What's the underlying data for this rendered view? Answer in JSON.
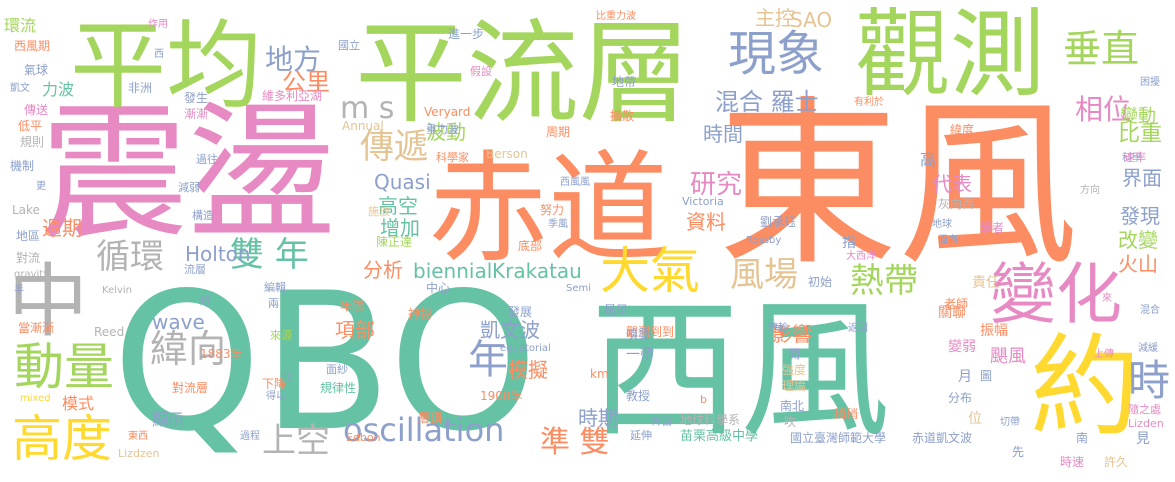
{
  "palette": {
    "green": "#a4d65e",
    "orange": "#fc8d62",
    "teal": "#66c2a5",
    "pink": "#e78ac3",
    "blue": "#8da0cb",
    "yellow": "#ffd92f",
    "tan": "#e5c494",
    "gray": "#b3b3b3"
  },
  "words": {
    "dongfeng": "東風",
    "qbo": "QBO",
    "xifeng": "西風",
    "zhendang": "震盪",
    "chidao": "赤道",
    "pingliuceng": "平流層",
    "pingjun": "平均",
    "guance": "觀測",
    "bianhua": "變化",
    "yue": "約",
    "xianxiang": "現象",
    "dongliang": "動量",
    "gaodu": "高度",
    "oscillation": "oscillation",
    "chuizhi": "垂直",
    "zhong": "中",
    "daqi": "大氣",
    "chuandi": "傳遞",
    "difang": "地方",
    "gongli": "公里",
    "ms": "m s",
    "yanjiu": "研究",
    "fengchang": "風場",
    "redai": "熱帶",
    "shuangnian": "雙 年",
    "xunhuan": "循環",
    "weixiang": "緯向",
    "shangkong": "上空",
    "nian": "年",
    "zhunshuang": "準 雙",
    "xiangwei": "相位",
    "shi": "時",
    "bodong": "波動",
    "hunheluoshi": "混合 羅士",
    "zhukong": "主控",
    "sao": "SAO",
    "shijian": "時間",
    "bianzhong": "比重",
    "biandong": "變動",
    "quasi": "Quasi",
    "gaokong": "高空",
    "zengjia": "增加",
    "ziliao": "資料",
    "daibiao": "代表",
    "holton": "Holton",
    "biennial": "biennial",
    "krakatau": "Krakatau",
    "fenxi": "分析",
    "zhouqi": "週期",
    "wave": "wave",
    "xiangbu": "項部",
    "kaiwenbo": "凱文波",
    "moni": "模擬",
    "shiqi": "時期",
    "yingxiang": "影響",
    "jiemian": "界面",
    "faxian": "發現",
    "gaibian": "改變",
    "huoshan": "火山",
    "zeren": "責任",
    "guanlian": "關聯",
    "zhenfu": "振幅",
    "jufeng": "颶風",
    "bianruo": "變弱",
    "yue2": "月",
    "yihuan": "環流",
    "xifengqi": "西風期",
    "qiqiu": "氣球",
    "kaiwen": "凱文",
    "chuansong": "傳送",
    "diping": "低平",
    "guize": "規則",
    "jizhi": "機制",
    "geng": "更",
    "lake": "Lake",
    "diqu": "地區",
    "duiliu": "對流",
    "gravity": "gravity",
    "ban": "半",
    "dangjianjian": "當漸漸",
    "mixed": "mixed",
    "liboa": "力波",
    "feizhou": "非洲",
    "fasheng": "發生",
    "jianjian": "漸漸",
    "guoqu": "過往",
    "jianruo": "減弱",
    "gouzao": "構造",
    "zhouqi2": "週期",
    "liuceng": "流層",
    "kelvin": "Kelvin",
    "reed": "Reed",
    "liang": "兩",
    "duan": "短",
    "bianji": "編輯",
    "laiyuan": "來源",
    "nianji": "年際",
    "shenmi": "神祕",
    "fazhan": "發展",
    "guancedaoci": "觀測到到",
    "yidai": "一帶",
    "pentfa": "噴發",
    "jiaoshou": "教授",
    "zuizao": "最早",
    "ceng": "層",
    "cenggding": "層頂",
    "jiyi": "1908年",
    "km": "km",
    "b": "b",
    "diqiukexuexi": "地球科學系",
    "miaoli": "苗栗高級中學",
    "guoli": "國立臺灣師範大學",
    "chidaokaiwen": "赤道凱文波",
    "yanshen": "延伸",
    "beizhi": "倍",
    "edbon": "Edbon",
    "lizden": "Lizdzen",
    "lizden2": "Lizden",
    "dongxi": "東西",
    "duiliuceng": "對流層",
    "shuqing": "1883年",
    "xiajiang": "下降",
    "guilvxing": "規律性",
    "mianzhe": "面紗",
    "bei": "北",
    "tigong": "提供",
    "equatorial": "equatorial",
    "semi": "Semi",
    "zhongxin": "中心",
    "chen": "陳正達",
    "liu": "劉承珏",
    "rossby": "Rossby",
    "zhi": "指",
    "daxiyang": "大西洋",
    "chuci": "初始",
    "victoria": "Victoria",
    "dibu": "底部",
    "jimiao": "季風",
    "nuli": "努力",
    "xifengfeng": "西風風",
    "huixiangxi": "灰向西",
    "dili": "地球",
    "kuosan": "擴散",
    "kexuejia": "科學家",
    "berson": "Berson",
    "zhouqi3": "周期",
    "veryard": "Veryard",
    "zhongli": "重力波",
    "annual": "Annual",
    "weiduo": "維多利亞湖",
    "jinyibu": "進一步",
    "jiashe": "假設",
    "didai": "地帶",
    "biliboa": "比重力波",
    "guoli2": "國立",
    "zuoyong": "作用",
    "xi": "西",
    "bodong2": "波向",
    "weidu": "緯度",
    "youli": "有利於",
    "kunrao": "困擾",
    "kexue": "科學",
    "sulv": "速率",
    "fangxiang": "方向",
    "xuezhe": "學者",
    "mianxiang": "面向",
    "shi2": "使",
    "laoshi": "老師",
    "chuanyu": "傳輸",
    "fanhui": "返回",
    "kai": "開",
    "qiangdu": "強度",
    "lilun": "理論",
    "nanbei": "南北",
    "chui": "吹",
    "fenbu": "分布",
    "wei": "位",
    "shaoshao": "稍稍",
    "tu": "圖",
    "suizhi": "隨之處",
    "jian": "見",
    "nan": "南",
    "xujiu": "許久",
    "shisu": "時速",
    "xian": "先",
    "qiehuan": "切帶",
    "jiangxi": "降西",
    "shangchuan": "上傳",
    "jianruo2": "減緩",
    "hunhe": "混合",
    "lai": "來",
    "jiangdi": "降低",
    "xiaoshi": "曉示",
    "xianshi": "顯示",
    "moshi": "模式",
    "dechao": "得以",
    "guocheng": "過程",
    "guiqi": "鬼氣",
    "shifang": "施放",
    "gao": "高",
    "rong": "容",
    "jiayi": "加以",
    "liuxiang": "流向"
  }
}
